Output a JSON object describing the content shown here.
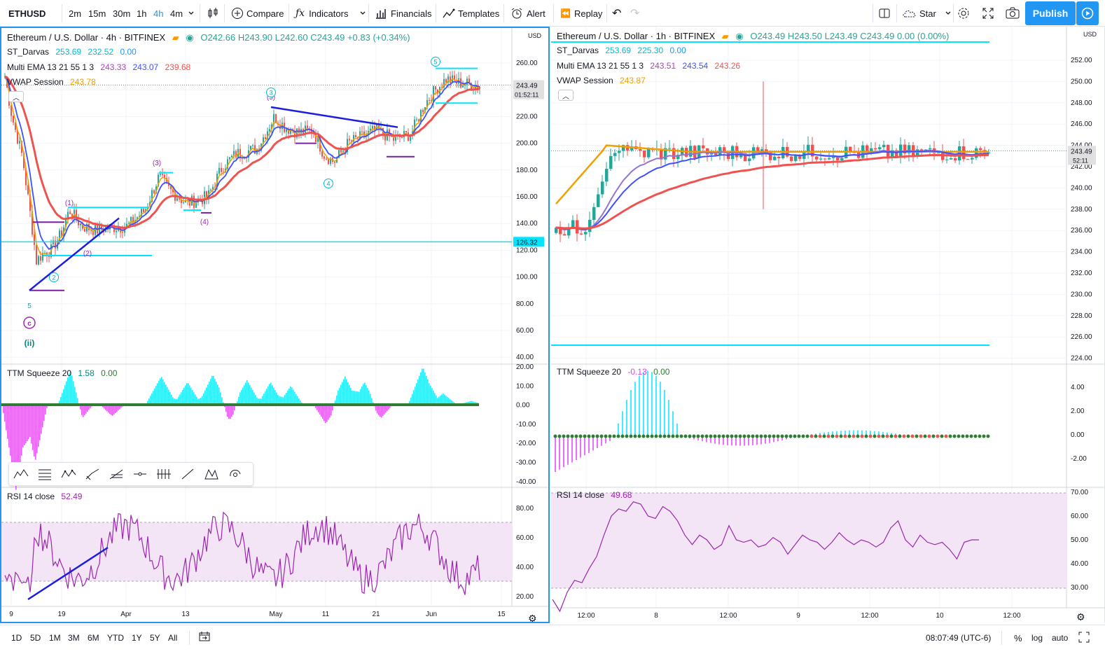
{
  "toolbar": {
    "symbol": "ETHUSD",
    "intervals": [
      "2m",
      "15m",
      "30m",
      "1h",
      "4h",
      "4m"
    ],
    "active_interval": "4h",
    "compare": "Compare",
    "indicators": "Indicators",
    "financials": "Financials",
    "templates": "Templates",
    "alert": "Alert",
    "replay": "Replay",
    "star": "Star",
    "publish": "Publish"
  },
  "left": {
    "title": "Ethereum / U.S. Dollar · 4h · BITFINEX",
    "ohlc": "O242.66  H243.90  L242.60  C243.49  +0.83 (+0.34%)",
    "darvas_label": "ST_Darvas",
    "darvas_v1": "253.69",
    "darvas_v2": "232.52",
    "darvas_v3": "0.00",
    "ema_label": "Multi EMA 13 21 55 1 3",
    "ema_v1": "243.33",
    "ema_v2": "243.07",
    "ema_v3": "239.68",
    "vwap_label": "VWAP Session",
    "vwap_v": "243.78",
    "currency": "USD",
    "price_labels": [
      "260.00",
      "240.00",
      "220.00",
      "200.00",
      "180.00",
      "160.00",
      "140.00",
      "120.00",
      "100.00",
      "80.00",
      "60.00",
      "40.00"
    ],
    "last_price": "243.49",
    "countdown": "01:52:11",
    "hline_price": "126.32",
    "squeeze_label": "TTM Squeeze 20",
    "squeeze_v1": "1.58",
    "squeeze_v2": "0.00",
    "squeeze_axis": [
      "20.00",
      "10.00",
      "0.00",
      "-10.00",
      "-20.00",
      "-30.00",
      "-40.00"
    ],
    "rsi_label": "RSI 14 close",
    "rsi_v": "52.49",
    "rsi_axis": [
      "80.00",
      "60.00",
      "40.00",
      "20.00"
    ],
    "time_labels": [
      "9",
      "19",
      "Apr",
      "13",
      "May",
      "11",
      "21",
      "Jun",
      "15"
    ],
    "wave_labels": [
      "(1)",
      "(2)",
      "(3)",
      "(4)",
      "(5)",
      "1",
      "2",
      "3",
      "4",
      "5",
      "5",
      "c",
      "(ii)"
    ]
  },
  "right": {
    "title": "Ethereum / U.S. Dollar · 1h · BITFINEX",
    "ohlc": "O243.49  H243.50  L243.49  C243.49  0.00 (0.00%)",
    "darvas_label": "ST_Darvas",
    "darvas_v1": "253.69",
    "darvas_v2": "225.30",
    "darvas_v3": "0.00",
    "ema_label": "Multi EMA 13 21 55 1 3",
    "ema_v1": "243.51",
    "ema_v2": "243.54",
    "ema_v3": "243.26",
    "vwap_label": "VWAP Session",
    "vwap_v": "243.87",
    "currency": "USD",
    "price_labels": [
      "252.00",
      "250.00",
      "248.00",
      "246.00",
      "244.00",
      "242.00",
      "240.00",
      "238.00",
      "236.00",
      "234.00",
      "232.00",
      "230.00",
      "228.00",
      "226.00",
      "224.00"
    ],
    "last_price": "243.49",
    "countdown": "52:11",
    "squeeze_label": "TTM Squeeze 20",
    "squeeze_v1": "-0.13",
    "squeeze_v2": "0.00",
    "squeeze_axis": [
      "4.00",
      "2.00",
      "0.00",
      "-2.00"
    ],
    "rsi_label": "RSI 14 close",
    "rsi_v": "49.68",
    "rsi_axis": [
      "70.00",
      "60.00",
      "50.00",
      "40.00",
      "30.00"
    ],
    "time_labels": [
      "12:00",
      "8",
      "12:00",
      "9",
      "12:00",
      "10",
      "12:00"
    ]
  },
  "bottom": {
    "ranges": [
      "1D",
      "5D",
      "1M",
      "3M",
      "6M",
      "YTD",
      "1Y",
      "5Y",
      "All"
    ],
    "clock": "08:07:49 (UTC-6)",
    "percent": "%",
    "log": "log",
    "auto": "auto"
  },
  "colors": {
    "accent": "#2196f3",
    "cyan": "#00e5ff",
    "ema_fast": "#f0a000",
    "ema_mid": "#3f51ff",
    "ema_slow": "#ef5350",
    "rsi": "#9c27b0",
    "rsi_band": "#f3e5f5"
  }
}
